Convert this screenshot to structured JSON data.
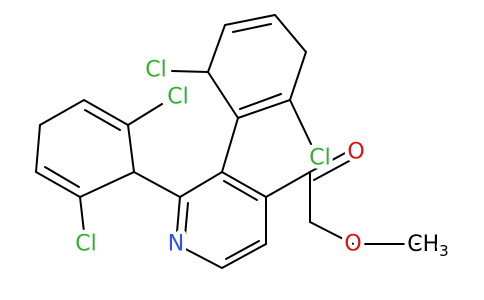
{
  "atoms": {
    "nitrogen": "N",
    "carbonyl_oxygen": "O",
    "ester_oxygen": "O",
    "methyl": {
      "main": "CH",
      "sub": "3"
    },
    "chlorines": [
      "Cl",
      "Cl",
      "Cl",
      "Cl"
    ]
  }
}
